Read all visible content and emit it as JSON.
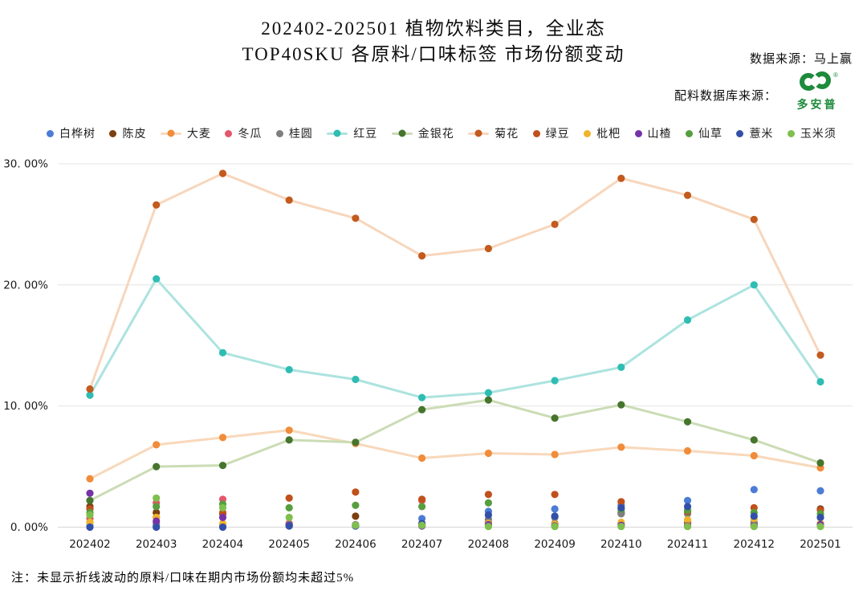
{
  "header": {
    "title_line1": "202402-202501 植物饮料类目，全业态",
    "title_line2": "TOP40SKU 各原料/口味标签 市场份额变动",
    "data_source": "数据来源：马上赢",
    "ingredient_source_label": "配料数据库来源：",
    "logo_text": "多安普",
    "logo_registered": "®",
    "logo_color": "#1E8A3C"
  },
  "note": "注：未显示折线波动的原料/口味在期内市场份额均未超过5%",
  "chart_data": {
    "type": "line",
    "title": "202402-202501 植物饮料类目，全业态 TOP40SKU 各原料/口味标签 市场份额变动",
    "xlabel": "",
    "ylabel": "",
    "ylim": [
      0,
      30
    ],
    "grid": true,
    "legend_position": "top",
    "x": [
      "202402",
      "202403",
      "202404",
      "202405",
      "202406",
      "202407",
      "202408",
      "202409",
      "202410",
      "202411",
      "202412",
      "202501"
    ],
    "y_ticks": [
      {
        "value": 0,
        "label": "0. 00%"
      },
      {
        "value": 10,
        "label": "10. 00%"
      },
      {
        "value": 20,
        "label": "20. 00%"
      },
      {
        "value": 30,
        "label": "30. 00%"
      }
    ],
    "series": [
      {
        "name": "白桦树",
        "style": "scatter",
        "color": "#4D7CD6",
        "line_color": null,
        "values": [
          0.1,
          0.1,
          0.1,
          0.1,
          0.2,
          0.7,
          1.3,
          1.5,
          1.8,
          2.2,
          3.1,
          3.0
        ]
      },
      {
        "name": "陈皮",
        "style": "scatter",
        "color": "#7B3F10",
        "line_color": null,
        "values": [
          1.7,
          1.2,
          1.1,
          0.3,
          0.9,
          0.3,
          0.4,
          0.3,
          1.2,
          0.4,
          0.3,
          1.5
        ]
      },
      {
        "name": "大麦",
        "style": "line",
        "color": "#F08C3A",
        "line_color": "#F8D8BA",
        "values": [
          4.0,
          6.8,
          7.4,
          8.0,
          6.9,
          5.7,
          6.1,
          6.0,
          6.6,
          6.3,
          5.9,
          4.9
        ]
      },
      {
        "name": "冬瓜",
        "style": "scatter",
        "color": "#E4576B",
        "line_color": null,
        "values": [
          0.7,
          2.0,
          2.3,
          0.3,
          0.2,
          2.2,
          0.3,
          0.2,
          0.3,
          0.2,
          0.2,
          0.3
        ]
      },
      {
        "name": "桂圆",
        "style": "scatter",
        "color": "#7F7F7F",
        "line_color": null,
        "values": [
          0.4,
          0.3,
          0.2,
          0.2,
          0.2,
          0.2,
          0.65,
          0.8,
          1.1,
          1.1,
          0.4,
          0.8
        ]
      },
      {
        "name": "红豆",
        "style": "line",
        "color": "#2FBDB3",
        "line_color": "#ACE3DF",
        "values": [
          10.9,
          20.5,
          14.4,
          13.0,
          12.2,
          10.7,
          11.1,
          12.1,
          13.2,
          17.1,
          20.0,
          12.0
        ]
      },
      {
        "name": "金银花",
        "style": "line",
        "color": "#46752D",
        "line_color": "#CBDCB5",
        "values": [
          2.2,
          5.0,
          5.1,
          7.2,
          7.0,
          9.7,
          10.5,
          9.0,
          10.1,
          8.7,
          7.2,
          5.3
        ]
      },
      {
        "name": "菊花",
        "style": "line",
        "color": "#C35A1E",
        "line_color": "#F7D6BC",
        "values": [
          11.4,
          26.6,
          29.2,
          27.0,
          25.5,
          22.4,
          23.0,
          25.0,
          28.8,
          27.4,
          25.4,
          14.2
        ]
      },
      {
        "name": "绿豆",
        "style": "scatter",
        "color": "#C0511C",
        "line_color": null,
        "values": [
          1.5,
          0.8,
          1.2,
          2.4,
          2.9,
          2.3,
          2.7,
          2.7,
          2.1,
          1.3,
          1.6,
          1.4
        ]
      },
      {
        "name": "枇杷",
        "style": "scatter",
        "color": "#F0B429",
        "line_color": null,
        "values": [
          0.4,
          0.8,
          0.3,
          0.1,
          0.15,
          0.1,
          0.3,
          0.25,
          0.4,
          0.6,
          0.7,
          0.3
        ]
      },
      {
        "name": "山楂",
        "style": "scatter",
        "color": "#7633A8",
        "line_color": null,
        "values": [
          2.8,
          0.5,
          0.8,
          0.15,
          0.1,
          0.1,
          0.2,
          0.1,
          0.15,
          0.1,
          0.1,
          0.2
        ]
      },
      {
        "name": "仙草",
        "style": "scatter",
        "color": "#579E3F",
        "line_color": null,
        "values": [
          1.2,
          1.7,
          1.9,
          1.6,
          1.8,
          1.7,
          2.0,
          0.9,
          1.5,
          1.4,
          1.2,
          1.1
        ]
      },
      {
        "name": "薏米",
        "style": "scatter",
        "color": "#3350A8",
        "line_color": null,
        "values": [
          0.0,
          0.0,
          0.0,
          0.1,
          0.1,
          0.3,
          1.0,
          0.9,
          1.6,
          1.7,
          0.9,
          0.8
        ]
      },
      {
        "name": "玉米须",
        "style": "scatter",
        "color": "#7FBF4D",
        "line_color": null,
        "values": [
          1.0,
          2.4,
          1.6,
          0.8,
          0.15,
          0.15,
          0.05,
          0.05,
          0.05,
          0.05,
          0.05,
          0.05
        ]
      }
    ]
  }
}
